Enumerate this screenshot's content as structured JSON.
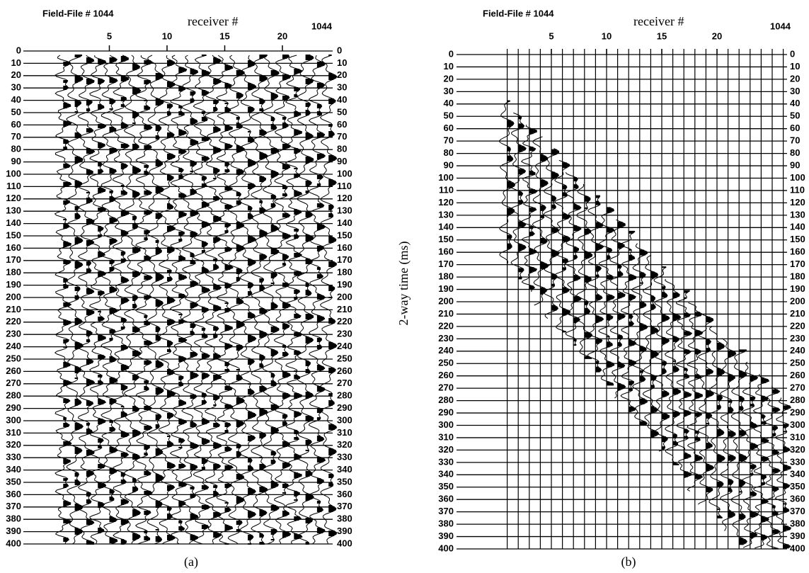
{
  "panels": [
    {
      "header": "Field-File # 1044",
      "axis_title": "receiver #",
      "corner_label": "1044",
      "xticks": [
        5,
        10,
        15,
        20
      ],
      "yticks": [
        0,
        10,
        20,
        30,
        40,
        50,
        60,
        70,
        80,
        90,
        100,
        110,
        120,
        130,
        140,
        150,
        160,
        170,
        180,
        190,
        200,
        210,
        220,
        230,
        240,
        250,
        260,
        270,
        280,
        290,
        300,
        310,
        320,
        330,
        340,
        350,
        360,
        370,
        380,
        390,
        400
      ],
      "caption": "(a)"
    },
    {
      "header": "Field-File # 1044",
      "axis_title": "receiver #",
      "corner_label": "1044",
      "xticks": [
        5,
        10,
        15,
        20
      ],
      "yticks": [
        0,
        10,
        20,
        30,
        40,
        50,
        60,
        70,
        80,
        90,
        100,
        110,
        120,
        130,
        140,
        150,
        160,
        170,
        180,
        190,
        200,
        210,
        220,
        230,
        240,
        250,
        260,
        270,
        280,
        290,
        300,
        310,
        320,
        330,
        340,
        350,
        360,
        370,
        380,
        390,
        400
      ],
      "caption": "(b)"
    }
  ],
  "shared_axis_label": "2-way time (ms)"
}
